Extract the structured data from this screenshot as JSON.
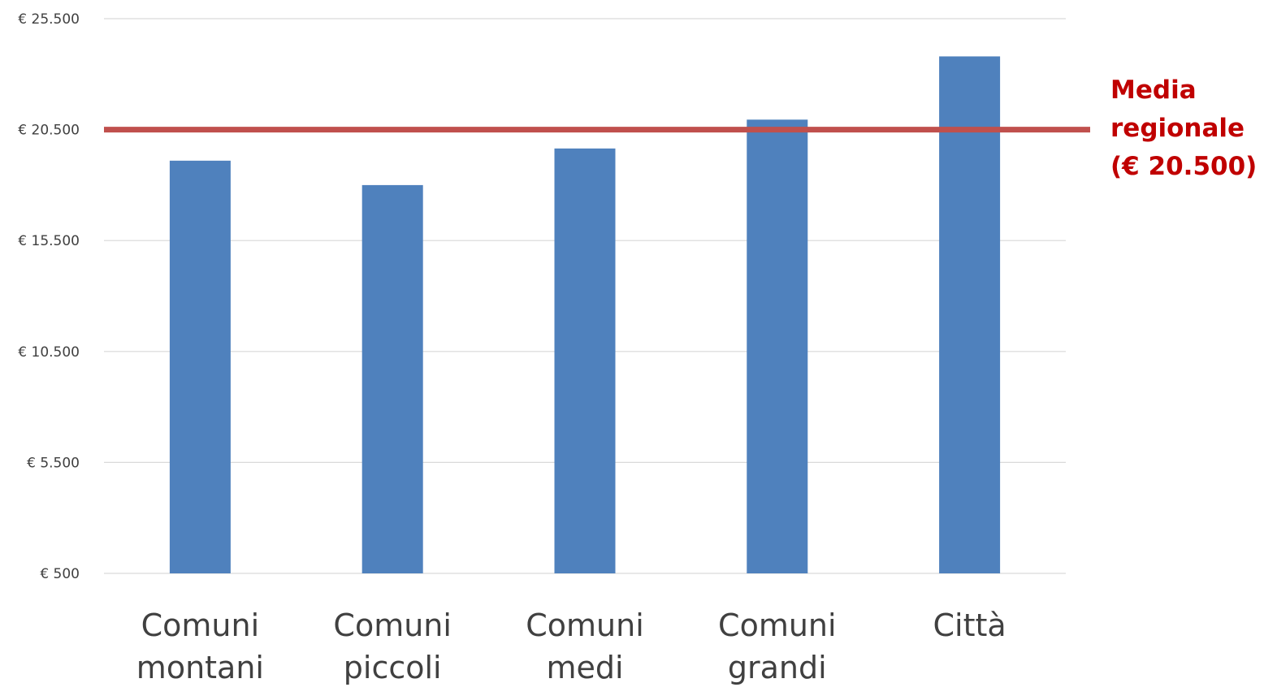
{
  "chart_data": {
    "type": "bar",
    "title": "",
    "xlabel": "",
    "ylabel": "",
    "categories": [
      [
        "Comuni",
        "montani"
      ],
      [
        "Comuni",
        "piccoli"
      ],
      [
        "Comuni",
        "medi"
      ],
      [
        "Comuni",
        "grandi"
      ],
      [
        "Città"
      ]
    ],
    "values": [
      19100,
      18000,
      19650,
      20950,
      23800
    ],
    "ylim": [
      500,
      25500
    ],
    "yticks": [
      500,
      5500,
      10500,
      15500,
      20500,
      25500
    ],
    "ytick_labels": [
      "€ 500",
      "€ 5.500",
      "€ 10.500",
      "€ 15.500",
      "€ 20.500",
      "€ 25.500"
    ],
    "grid": true,
    "legend": "none",
    "bar_color": "#4f81bd",
    "reference_line": {
      "value": 20500,
      "color": "#c0504d",
      "label_lines": [
        "Media",
        "regionale",
        "(€ 20.500)"
      ],
      "label_color": "#c00000"
    }
  }
}
